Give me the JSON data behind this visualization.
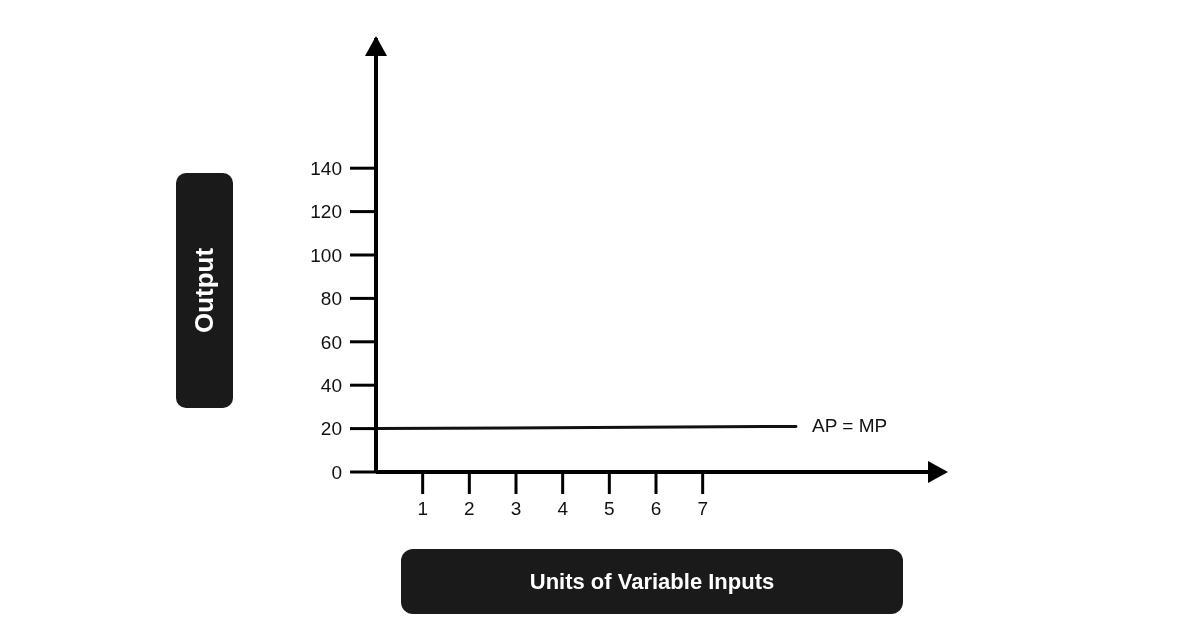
{
  "chart_data": {
    "type": "line",
    "xlabel": "Units of Variable Inputs",
    "ylabel": "Output",
    "x": [
      0,
      9
    ],
    "series": [
      {
        "name": "AP = MP",
        "color": "#111111",
        "values": [
          20,
          21
        ]
      }
    ],
    "xlim": [
      0,
      12
    ],
    "ylim": [
      0,
      200
    ],
    "xticks": [
      1,
      2,
      3,
      4,
      5,
      6,
      7
    ],
    "yticks": [
      0,
      20,
      40,
      60,
      80,
      100,
      120,
      140
    ],
    "marker": "none",
    "line_style": "solid"
  }
}
